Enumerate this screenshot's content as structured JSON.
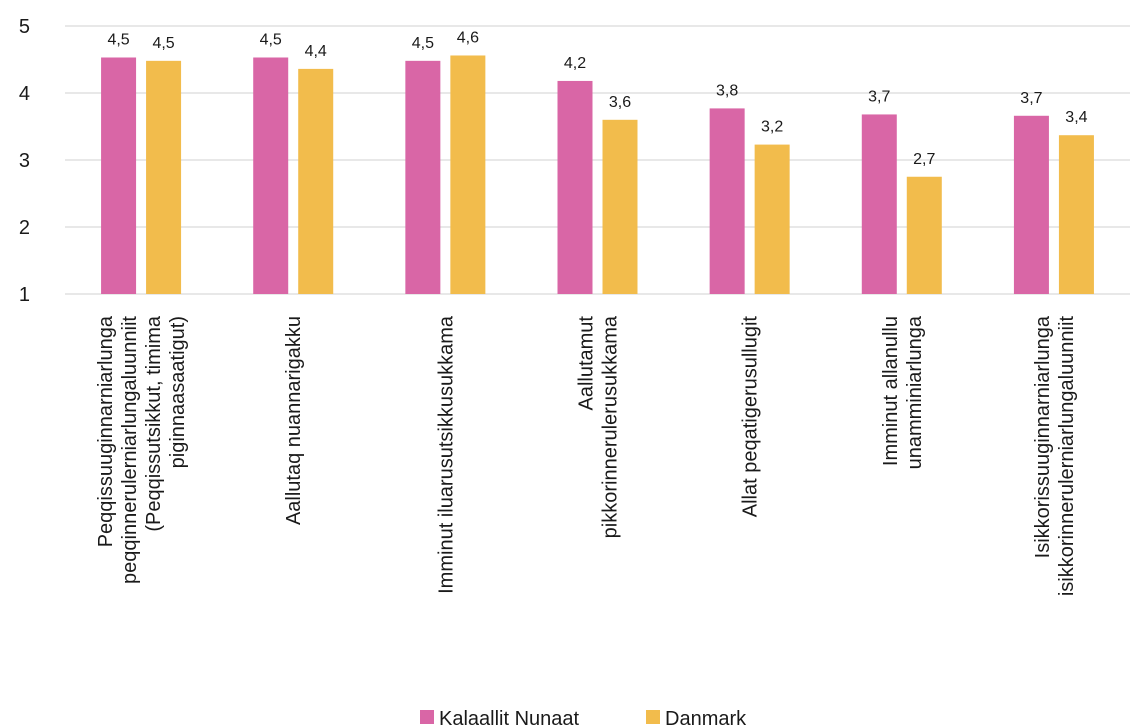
{
  "chart_data": {
    "type": "bar",
    "title": "",
    "xlabel": "",
    "ylabel": "",
    "ylim": [
      1,
      5
    ],
    "yticks": [
      1,
      2,
      3,
      4,
      5
    ],
    "grid": true,
    "legend_position": "bottom",
    "categories": [
      [
        "Peqqissuuginnarniarlunga",
        "peqqinnerulerniarlungaluunniit",
        "(Peqqissutsikkut, timima",
        "piginnaasaatigut)"
      ],
      [
        "Aallutaq nuannarigakku"
      ],
      [
        "Imminut iluarusutsikkusukkama"
      ],
      [
        "Aallutamut",
        "pikkorinnerulerusukkama"
      ],
      [
        "Allat peqatigerusullugit"
      ],
      [
        "Imminut allanullu",
        "unamminiarlunga"
      ],
      [
        "Isikkorissuuginnarniarlunga",
        "isikkorinnerulerniarlungaluunniit"
      ]
    ],
    "series": [
      {
        "name": "Kalaallit Nunaat",
        "color": "#d966a6",
        "values": [
          4.53,
          4.53,
          4.48,
          4.18,
          3.77,
          3.68,
          3.66
        ],
        "labels": [
          "4,5",
          "4,5",
          "4,5",
          "4,2",
          "3,8",
          "3,7",
          "3,7"
        ]
      },
      {
        "name": "Danmark",
        "color": "#f2bc4c",
        "values": [
          4.48,
          4.36,
          4.56,
          3.6,
          3.23,
          2.75,
          3.37
        ],
        "labels": [
          "4,5",
          "4,4",
          "4,6",
          "3,6",
          "3,2",
          "2,7",
          "3,4"
        ]
      }
    ]
  }
}
